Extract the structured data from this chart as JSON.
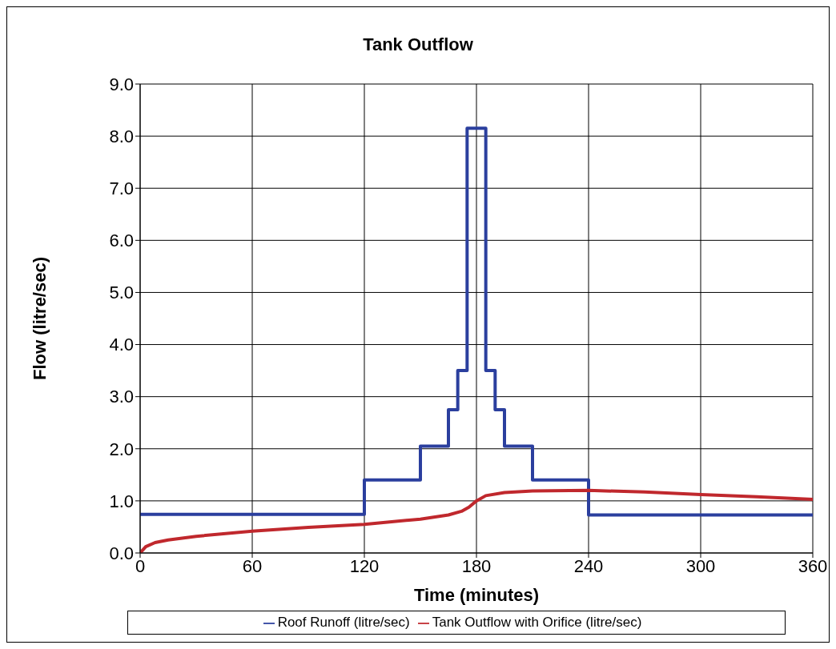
{
  "chart_data": {
    "type": "line",
    "title": "Tank Outflow",
    "xlabel": "Time (minutes)",
    "ylabel": "Flow (litre/sec)",
    "xlim": [
      0,
      360
    ],
    "xticks": [
      0,
      60,
      120,
      180,
      240,
      300,
      360
    ],
    "ylim": [
      0,
      9
    ],
    "yticks": [
      {
        "value": 0,
        "label": "0.0"
      },
      {
        "value": 1,
        "label": "1.0"
      },
      {
        "value": 2,
        "label": "2.0"
      },
      {
        "value": 3,
        "label": "3.0"
      },
      {
        "value": 4,
        "label": "4.0"
      },
      {
        "value": 5,
        "label": "5.0"
      },
      {
        "value": 6,
        "label": "6.0"
      },
      {
        "value": 7,
        "label": "7.0"
      },
      {
        "value": 8,
        "label": "8.0"
      },
      {
        "value": 9,
        "label": "9.0"
      }
    ],
    "grid": true,
    "legend": "bottom",
    "marker": "none",
    "line_style": "solid",
    "series": [
      {
        "name": "Roof Runoff (litre/sec)",
        "type": "step",
        "color": "#2b3f9e",
        "x": [
          0,
          120,
          150,
          165,
          170,
          175,
          185,
          190,
          195,
          210,
          240,
          360
        ],
        "values": [
          0.74,
          1.4,
          2.05,
          2.75,
          3.5,
          8.15,
          3.5,
          2.75,
          2.05,
          1.4,
          0.73,
          0.73
        ]
      },
      {
        "name": "Tank Outflow with Orifice (litre/sec)",
        "type": "line",
        "color": "#c0282d",
        "x": [
          0,
          3,
          8,
          15,
          30,
          60,
          90,
          120,
          150,
          165,
          172,
          176,
          180,
          185,
          195,
          210,
          240,
          270,
          300,
          330,
          360
        ],
        "values": [
          0,
          0.12,
          0.2,
          0.25,
          0.32,
          0.42,
          0.49,
          0.55,
          0.65,
          0.73,
          0.8,
          0.88,
          1.0,
          1.1,
          1.16,
          1.19,
          1.2,
          1.17,
          1.12,
          1.08,
          1.03
        ]
      }
    ]
  }
}
